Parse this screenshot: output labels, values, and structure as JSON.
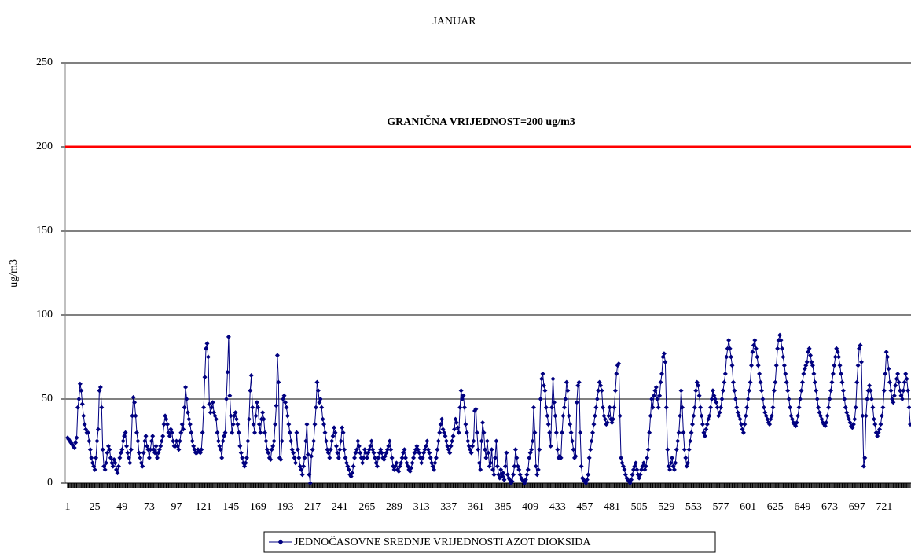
{
  "chart_data": {
    "type": "line",
    "title": "JANUAR",
    "y_label": "ug/m3",
    "ylim": [
      0,
      250
    ],
    "yticks": [
      0,
      50,
      100,
      150,
      200,
      250
    ],
    "xlim": [
      1,
      744
    ],
    "xticks": [
      1,
      25,
      49,
      73,
      97,
      121,
      145,
      169,
      193,
      217,
      241,
      265,
      289,
      313,
      337,
      361,
      385,
      409,
      433,
      457,
      481,
      505,
      529,
      553,
      577,
      601,
      625,
      649,
      673,
      697,
      721
    ],
    "grid": true,
    "legend": "bottom",
    "threshold": {
      "value": 200,
      "label": "GRANIČNA VRIJEDNOST=200 ug/m3",
      "color": "#ff0000"
    },
    "x": [
      1,
      2,
      3,
      4,
      5,
      6,
      7,
      8,
      9,
      10,
      11,
      12,
      13,
      14,
      15,
      16,
      17,
      18,
      19,
      20,
      21,
      22,
      23,
      24,
      25,
      26,
      27,
      28,
      29,
      30,
      31,
      32,
      33,
      34,
      35,
      36,
      37,
      38,
      39,
      40,
      41,
      42,
      43,
      44,
      45,
      46,
      47,
      48,
      49,
      50,
      51,
      52,
      53,
      54,
      55,
      56,
      57,
      58,
      59,
      60,
      61,
      62,
      63,
      64,
      65,
      66,
      67,
      68,
      69,
      70,
      71,
      72,
      73,
      74,
      75,
      76,
      77,
      78,
      79,
      80,
      81,
      82,
      83,
      84,
      85,
      86,
      87,
      88,
      89,
      90,
      91,
      92,
      93,
      94,
      95,
      96,
      97,
      98,
      99,
      100,
      101,
      102,
      103,
      104,
      105,
      106,
      107,
      108,
      109,
      110,
      111,
      112,
      113,
      114,
      115,
      116,
      117,
      118,
      119,
      120,
      121,
      122,
      123,
      124,
      125,
      126,
      127,
      128,
      129,
      130,
      131,
      132,
      133,
      134,
      135,
      136,
      137,
      138,
      139,
      140,
      141,
      142,
      143,
      144,
      145,
      146,
      147,
      148,
      149,
      150,
      151,
      152,
      153,
      154,
      155,
      156,
      157,
      158,
      159,
      160,
      161,
      162,
      163,
      164,
      165,
      166,
      167,
      168,
      169,
      170,
      171,
      172,
      173,
      174,
      175,
      176,
      177,
      178,
      179,
      180,
      181,
      182,
      183,
      184,
      185,
      186,
      187,
      188,
      189,
      190,
      191,
      192,
      193,
      194,
      195,
      196,
      197,
      198,
      199,
      200,
      201,
      202,
      203,
      204,
      205,
      206,
      207,
      208,
      209,
      210,
      211,
      212,
      213,
      214,
      215,
      216,
      217,
      218,
      219,
      220,
      221,
      222,
      223,
      224,
      225,
      226,
      227,
      228,
      229,
      230,
      231,
      232,
      233,
      234,
      235,
      236,
      237,
      238,
      239,
      240,
      241,
      242,
      243,
      244,
      245,
      246,
      247,
      248,
      249,
      250,
      251,
      252,
      253,
      254,
      255,
      256,
      257,
      258,
      259,
      260,
      261,
      262,
      263,
      264,
      265,
      266,
      267,
      268,
      269,
      270,
      271,
      272,
      273,
      274,
      275,
      276,
      277,
      278,
      279,
      280,
      281,
      282,
      283,
      284,
      285,
      286,
      287,
      288,
      289,
      290,
      291,
      292,
      293,
      294,
      295,
      296,
      297,
      298,
      299,
      300,
      301,
      302,
      303,
      304,
      305,
      306,
      307,
      308,
      309,
      310,
      311,
      312,
      313,
      314,
      315,
      316,
      317,
      318,
      319,
      320,
      321,
      322,
      323,
      324,
      325,
      326,
      327,
      328,
      329,
      330,
      331,
      332,
      333,
      334,
      335,
      336,
      337,
      338,
      339,
      340,
      341,
      342,
      343,
      344,
      345,
      346,
      347,
      348,
      349,
      350,
      351,
      352,
      353,
      354,
      355,
      356,
      357,
      358,
      359,
      360,
      361,
      362,
      363,
      364,
      365,
      366,
      367,
      368,
      369,
      370,
      371,
      372,
      373,
      374,
      375,
      376,
      377,
      378,
      379,
      380,
      381,
      382,
      383,
      384,
      385,
      386,
      387,
      388,
      389,
      390,
      391,
      392,
      393,
      394,
      395,
      396,
      397,
      398,
      399,
      400,
      401,
      402,
      403,
      404,
      405,
      406,
      407,
      408,
      409,
      410,
      411,
      412,
      413,
      414,
      415,
      416,
      417,
      418,
      419,
      420,
      421,
      422,
      423,
      424,
      425,
      426,
      427,
      428,
      429,
      430,
      431,
      432,
      433,
      434,
      435,
      436,
      437,
      438,
      439,
      440,
      441,
      442,
      443,
      444,
      445,
      446,
      447,
      448,
      449,
      450,
      451,
      452,
      453,
      454,
      455,
      456,
      457,
      458,
      459,
      460,
      461,
      462,
      463,
      464,
      465,
      466,
      467,
      468,
      469,
      470,
      471,
      472,
      473,
      474,
      475,
      476,
      477,
      478,
      479,
      480,
      481,
      482,
      483,
      484,
      485,
      486,
      487,
      488,
      489,
      490,
      491,
      492,
      493,
      494,
      495,
      496,
      497,
      498,
      499,
      500,
      501,
      502,
      503,
      504,
      505,
      506,
      507,
      508,
      509,
      510,
      511,
      512,
      513,
      514,
      515,
      516,
      517,
      518,
      519,
      520,
      521,
      522,
      523,
      524,
      525,
      526,
      527,
      528,
      529,
      530,
      531,
      532,
      533,
      534,
      535,
      536,
      537,
      538,
      539,
      540,
      541,
      542,
      543,
      544,
      545,
      546,
      547,
      548,
      549,
      550,
      551,
      552,
      553,
      554,
      555,
      556,
      557,
      558,
      559,
      560,
      561,
      562,
      563,
      564,
      565,
      566,
      567,
      568,
      569,
      570,
      571,
      572,
      573,
      574,
      575,
      576,
      577,
      578,
      579,
      580,
      581,
      582,
      583,
      584,
      585,
      586,
      587,
      588,
      589,
      590,
      591,
      592,
      593,
      594,
      595,
      596,
      597,
      598,
      599,
      600,
      601,
      602,
      603,
      604,
      605,
      606,
      607,
      608,
      609,
      610,
      611,
      612,
      613,
      614,
      615,
      616,
      617,
      618,
      619,
      620,
      621,
      622,
      623,
      624,
      625,
      626,
      627,
      628,
      629,
      630,
      631,
      632,
      633,
      634,
      635,
      636,
      637,
      638,
      639,
      640,
      641,
      642,
      643,
      644,
      645,
      646,
      647,
      648,
      649,
      650,
      651,
      652,
      653,
      654,
      655,
      656,
      657,
      658,
      659,
      660,
      661,
      662,
      663,
      664,
      665,
      666,
      667,
      668,
      669,
      670,
      671,
      672,
      673,
      674,
      675,
      676,
      677,
      678,
      679,
      680,
      681,
      682,
      683,
      684,
      685,
      686,
      687,
      688,
      689,
      690,
      691,
      692,
      693,
      694,
      695,
      696,
      697,
      698,
      699,
      700,
      701,
      702,
      703,
      704,
      705,
      706,
      707,
      708,
      709,
      710,
      711,
      712,
      713,
      714,
      715,
      716,
      717,
      718,
      719,
      720,
      721,
      722,
      723,
      724,
      725,
      726,
      727,
      728,
      729,
      730,
      731,
      732,
      733,
      734,
      735,
      736,
      737,
      738,
      739,
      740,
      741,
      742,
      743,
      744
    ],
    "series": [
      {
        "name": "JEDNOČASOVNE SREDNJE VRIJEDNOSTI AZOT DIOKSIDA",
        "color": "#000080",
        "values": [
          27,
          26,
          25,
          24,
          23,
          22,
          21,
          24,
          27,
          45,
          50,
          59,
          55,
          47,
          40,
          35,
          32,
          30,
          30,
          25,
          20,
          15,
          12,
          10,
          8,
          15,
          25,
          32,
          55,
          57,
          45,
          20,
          10,
          8,
          12,
          18,
          22,
          20,
          15,
          12,
          10,
          14,
          12,
          8,
          6,
          10,
          15,
          18,
          20,
          25,
          28,
          30,
          22,
          18,
          15,
          12,
          20,
          40,
          51,
          48,
          40,
          30,
          25,
          18,
          15,
          12,
          10,
          18,
          25,
          28,
          22,
          20,
          15,
          20,
          25,
          28,
          20,
          18,
          22,
          15,
          18,
          20,
          22,
          25,
          28,
          35,
          40,
          38,
          35,
          30,
          28,
          32,
          30,
          25,
          22,
          22,
          25,
          22,
          20,
          25,
          30,
          35,
          32,
          45,
          57,
          50,
          42,
          38,
          35,
          30,
          25,
          22,
          20,
          18,
          18,
          20,
          19,
          18,
          20,
          30,
          45,
          63,
          80,
          83,
          75,
          47,
          42,
          45,
          48,
          42,
          40,
          38,
          30,
          25,
          22,
          20,
          15,
          25,
          28,
          30,
          50,
          66,
          87,
          52,
          40,
          30,
          35,
          40,
          42,
          38,
          35,
          30,
          22,
          18,
          15,
          12,
          10,
          12,
          15,
          25,
          38,
          55,
          64,
          45,
          35,
          30,
          40,
          48,
          45,
          35,
          30,
          38,
          42,
          38,
          30,
          25,
          20,
          18,
          15,
          14,
          20,
          22,
          25,
          35,
          46,
          76,
          60,
          15,
          14,
          25,
          50,
          52,
          48,
          45,
          40,
          35,
          30,
          25,
          20,
          18,
          15,
          12,
          30,
          20,
          15,
          10,
          8,
          5,
          10,
          15,
          25,
          35,
          17,
          5,
          0,
          16,
          20,
          25,
          35,
          45,
          60,
          55,
          48,
          50,
          45,
          38,
          35,
          30,
          25,
          20,
          18,
          15,
          20,
          25,
          28,
          33,
          30,
          22,
          18,
          15,
          20,
          25,
          33,
          30,
          20,
          15,
          12,
          10,
          8,
          5,
          4,
          6,
          10,
          15,
          18,
          20,
          25,
          22,
          18,
          15,
          12,
          15,
          20,
          18,
          15,
          18,
          20,
          22,
          25,
          20,
          18,
          15,
          12,
          10,
          15,
          18,
          20,
          18,
          15,
          14,
          16,
          18,
          20,
          22,
          25,
          20,
          15,
          10,
          8,
          10,
          12,
          8,
          7,
          10,
          12,
          15,
          18,
          20,
          15,
          12,
          10,
          8,
          7,
          9,
          12,
          15,
          18,
          20,
          22,
          20,
          18,
          15,
          12,
          15,
          18,
          20,
          22,
          25,
          20,
          18,
          15,
          12,
          10,
          8,
          12,
          15,
          20,
          25,
          30,
          35,
          38,
          32,
          30,
          28,
          25,
          22,
          20,
          18,
          22,
          25,
          28,
          32,
          38,
          36,
          33,
          30,
          45,
          55,
          50,
          52,
          45,
          35,
          30,
          25,
          22,
          20,
          18,
          22,
          25,
          43,
          44,
          30,
          20,
          12,
          8,
          25,
          36,
          30,
          20,
          15,
          25,
          18,
          10,
          12,
          20,
          8,
          5,
          15,
          25,
          10,
          5,
          3,
          8,
          4,
          6,
          2,
          10,
          18,
          5,
          3,
          2,
          0,
          1,
          5,
          10,
          20,
          15,
          10,
          8,
          5,
          3,
          2,
          1,
          0,
          2,
          5,
          8,
          15,
          18,
          20,
          25,
          45,
          30,
          10,
          5,
          8,
          20,
          50,
          62,
          65,
          58,
          55,
          45,
          40,
          35,
          30,
          22,
          45,
          62,
          48,
          40,
          30,
          20,
          15,
          16,
          15,
          30,
          40,
          45,
          50,
          60,
          55,
          40,
          35,
          30,
          25,
          20,
          15,
          16,
          48,
          58,
          60,
          30,
          10,
          3,
          2,
          1,
          0,
          2,
          5,
          15,
          20,
          25,
          30,
          35,
          40,
          45,
          50,
          55,
          60,
          58,
          55,
          45,
          40,
          38,
          35,
          36,
          40,
          45,
          38,
          36,
          38,
          45,
          55,
          65,
          70,
          71,
          40,
          15,
          12,
          10,
          8,
          5,
          3,
          2,
          1,
          0,
          2,
          5,
          8,
          10,
          12,
          8,
          5,
          3,
          5,
          8,
          10,
          12,
          8,
          10,
          15,
          20,
          30,
          40,
          50,
          45,
          52,
          55,
          57,
          50,
          45,
          52,
          60,
          65,
          75,
          77,
          72,
          45,
          20,
          10,
          8,
          12,
          15,
          10,
          8,
          12,
          20,
          25,
          30,
          40,
          55,
          45,
          30,
          20,
          15,
          10,
          12,
          20,
          25,
          30,
          35,
          40,
          45,
          55,
          60,
          58,
          52,
          45,
          40,
          35,
          30,
          28,
          32,
          35,
          38,
          40,
          45,
          50,
          55,
          52,
          50,
          48,
          45,
          40,
          42,
          45,
          50,
          55,
          60,
          65,
          75,
          80,
          85,
          80,
          75,
          70,
          60,
          55,
          50,
          45,
          42,
          40,
          38,
          35,
          32,
          30,
          35,
          40,
          45,
          50,
          55,
          60,
          70,
          78,
          82,
          85,
          80,
          75,
          70,
          65,
          60,
          55,
          50,
          45,
          42,
          40,
          38,
          36,
          35,
          38,
          40,
          45,
          55,
          60,
          70,
          80,
          85,
          88,
          85,
          80,
          75,
          70,
          65,
          60,
          55,
          50,
          45,
          40,
          38,
          36,
          35,
          34,
          36,
          40,
          45,
          50,
          55,
          60,
          65,
          68,
          70,
          72,
          78,
          80,
          76,
          72,
          70,
          65,
          60,
          55,
          50,
          45,
          42,
          40,
          38,
          36,
          35,
          34,
          36,
          40,
          45,
          50,
          55,
          60,
          65,
          70,
          75,
          80,
          78,
          75,
          70,
          65,
          60,
          55,
          50,
          45,
          42,
          40,
          38,
          36,
          34,
          33,
          35,
          38,
          45,
          60,
          70,
          80,
          82,
          72,
          40,
          10,
          15,
          40,
          50,
          55,
          58,
          55,
          50,
          45,
          38,
          35,
          30,
          28,
          30,
          32,
          35,
          40,
          45,
          55,
          65,
          78,
          75,
          68,
          60,
          55,
          50,
          48,
          52,
          58,
          62,
          65,
          60,
          55,
          52,
          50,
          55,
          60,
          65,
          62,
          55,
          45,
          35
        ]
      }
    ]
  }
}
